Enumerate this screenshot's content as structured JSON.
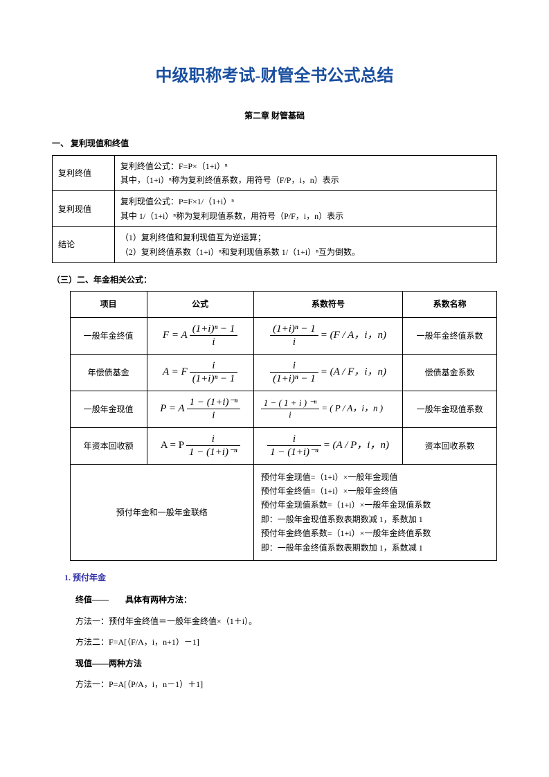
{
  "title": {
    "text": "中级职称考试-财管全书公式总结",
    "color": "#1a4fa0",
    "fontsize": 24
  },
  "chapter": "第二章 财管基础",
  "section1": {
    "heading": "一、 复利现值和终值",
    "rows": [
      {
        "label": "复利终值",
        "line1": "复利终值公式：F=P×（1+i）ⁿ",
        "line2": "其中，（1+i）ⁿ称为复利终值系数，用符号（F/P，i，n）表示"
      },
      {
        "label": "复利现值",
        "line1": "复利现值公式：P=F×1/（1+i）ⁿ",
        "line2": "其中 1/（1+i）ⁿ称为复利现值系数，用符号（P/F，i，n）表示"
      },
      {
        "label": "结论",
        "line1": "（1）复利终值和复利现值互为逆运算；",
        "line2": "（2）复利终值系数（1+i）ⁿ和复利现值系数 1/（1+i）ⁿ互为倒数。"
      }
    ]
  },
  "section2": {
    "heading": "（三）二、年金相关公式：",
    "cols": [
      "项目",
      "公式",
      "系数符号",
      "系数名称"
    ],
    "rows": [
      {
        "item": "一般年金终值",
        "formula_lhs": "F = A",
        "formula_num": "(1+i)ⁿ − 1",
        "formula_den": "i",
        "sym_num": "(1+i)ⁿ − 1",
        "sym_den": "i",
        "sym_rhs": "= (F / A，i，n)",
        "name": "一般年金终值系数"
      },
      {
        "item": "年偿债基金",
        "formula_lhs": "A = F",
        "formula_num": "i",
        "formula_den": "(1+i)ⁿ − 1",
        "sym_num": "i",
        "sym_den": "(1+i)ⁿ − 1",
        "sym_rhs": "= (A / F，i，n)",
        "name": "偿债基金系数"
      },
      {
        "item": "一般年金现值",
        "formula_lhs": "P = A",
        "formula_num": "1 − (1+i)⁻ⁿ",
        "formula_den": "i",
        "sym_num": "1 − ( 1 + i ) ⁻ⁿ",
        "sym_den": "i",
        "sym_rhs": "= ( P / A，i，n )",
        "name": "一般年金现值系数"
      },
      {
        "item": "年资本回收额",
        "formula_lhs": "A = P",
        "formula_num": "i",
        "formula_den": "1 − (1+i)⁻ⁿ",
        "sym_num": "i",
        "sym_den": "1 − (1+i)⁻ⁿ",
        "sym_rhs": "= (A / P，i，n)",
        "name": "资本回收系数"
      }
    ],
    "merged": {
      "left": "预付年金和一般年金联络",
      "lines": [
        "预付年金现值=（1+i）×一般年金现值",
        "预付年金终值=（1+i）×一般年金终值",
        "预付年金现值系数=（1+i）×一般年金现值系数",
        "即：一般年金现值系数表期数减 1，系数加 1",
        "预付年金终值系数=（1+i）×一般年金终值系数",
        "即：一般年金终值系数表期数加 1，系数减 1"
      ]
    }
  },
  "sub3": "1. 预付年金",
  "body": {
    "p1": "终值——　　具体有两种方法：",
    "p2": "方法一：预付年金终值＝一般年金终值×（1＋i）。",
    "p3": "方法二：F=A[（F/A，i，n+1）－1]",
    "p4": "现值——两种方法",
    "p5": "方法一：P=A[（P/A，i，n－1）＋1]"
  },
  "layout": {
    "t1_col1_width": "14%",
    "t2_widths": [
      "18%",
      "25%",
      "35%",
      "22%"
    ]
  }
}
